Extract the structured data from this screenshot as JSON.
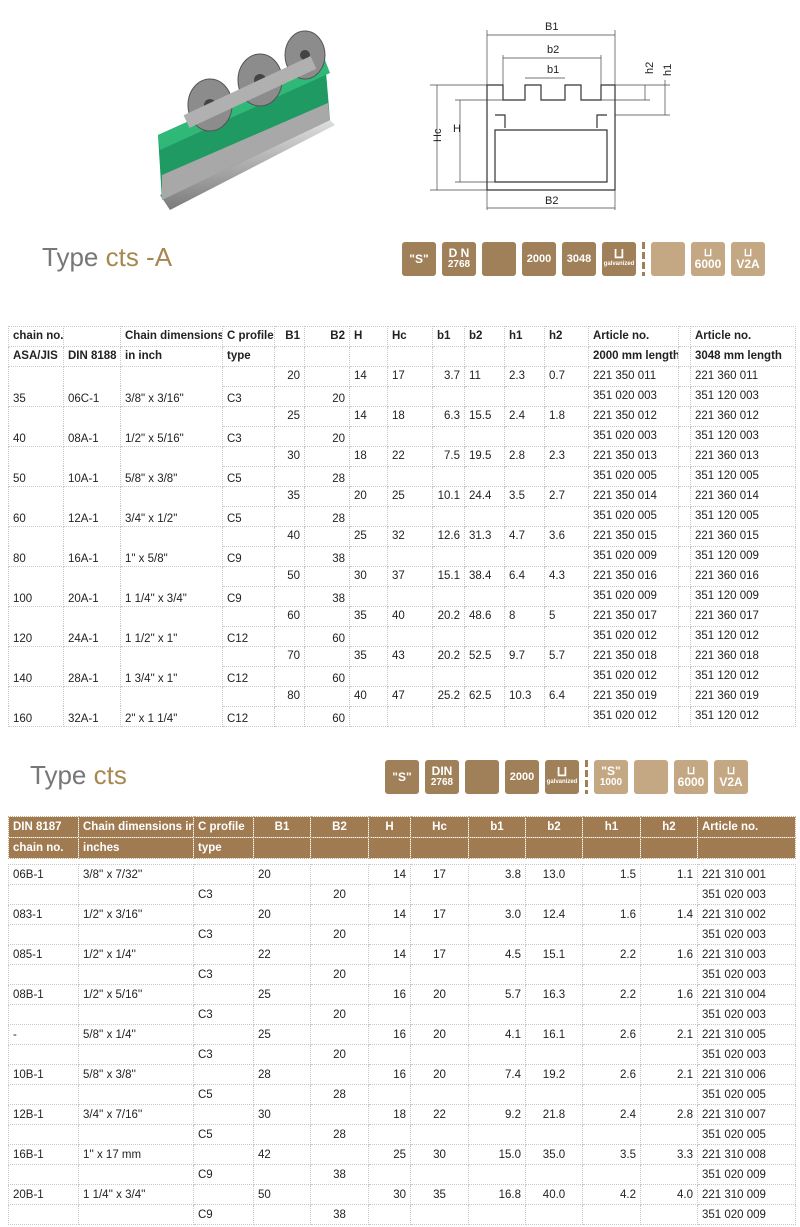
{
  "diagram": {
    "labels": [
      "B1",
      "b2",
      "b1",
      "h2",
      "h1",
      "Hc",
      "H",
      "B2"
    ]
  },
  "section_a": {
    "title_prefix": "Type",
    "title_accent": "cts -A",
    "badges": [
      {
        "icon": "s-quote-badge",
        "text": "\"S\""
      },
      {
        "icon": "din-badge",
        "text": "D N",
        "sub": "2768"
      },
      {
        "icon": "profile-drawing-badge",
        "text": ""
      },
      {
        "icon": "length-badge",
        "text": "2000"
      },
      {
        "icon": "length-badge",
        "text": "3048"
      },
      {
        "icon": "galvanized-channel-badge",
        "text": "galvanized"
      },
      {
        "icon": "blank-badge",
        "text": ""
      },
      {
        "icon": "channel-length-badge",
        "text": "6000"
      },
      {
        "icon": "stainless-channel-badge",
        "text": "V2A"
      }
    ],
    "headers": {
      "row1": [
        "chain no.",
        "",
        "Chain dimensions",
        "C profile",
        "B1",
        "B2",
        "H",
        "Hc",
        "b1",
        "b2",
        "h1",
        "h2",
        "Article no.",
        "",
        "Article no."
      ],
      "row2": [
        "ASA/JIS",
        "DIN 8188",
        "in inch",
        "type",
        "",
        "",
        "",
        "",
        "",
        "",
        "",
        "",
        "2000 mm length",
        "",
        "3048 mm length"
      ]
    },
    "rows": [
      [
        "35",
        "06C-1",
        "3/8\" x 3/16\"",
        "C3",
        "20",
        "20",
        "14",
        "17",
        "3.7",
        "11",
        "2.3",
        "0.7",
        "221 350 011",
        "351 020 003",
        "221 360 011",
        "351 120 003"
      ],
      [
        "40",
        "08A-1",
        "1/2\" x 5/16\"",
        "C3",
        "25",
        "20",
        "14",
        "18",
        "6.3",
        "15.5",
        "2.4",
        "1.8",
        "221 350 012",
        "351 020 003",
        "221 360 012",
        "351 120 003"
      ],
      [
        "50",
        "10A-1",
        "5/8\" x 3/8\"",
        "C5",
        "30",
        "28",
        "18",
        "22",
        "7.5",
        "19.5",
        "2.8",
        "2.3",
        "221 350 013",
        "351 020 005",
        "221 360 013",
        "351 120 005"
      ],
      [
        "60",
        "12A-1",
        "3/4\" x 1/2\"",
        "C5",
        "35",
        "28",
        "20",
        "25",
        "10.1",
        "24.4",
        "3.5",
        "2.7",
        "221 350 014",
        "351 020 005",
        "221 360 014",
        "351 120 005"
      ],
      [
        "80",
        "16A-1",
        "1\" x 5/8\"",
        "C9",
        "40",
        "38",
        "25",
        "32",
        "12.6",
        "31.3",
        "4.7",
        "3.6",
        "221 350 015",
        "351 020 009",
        "221 360 015",
        "351 120 009"
      ],
      [
        "100",
        "20A-1",
        "1 1/4\" x 3/4\"",
        "C9",
        "50",
        "38",
        "30",
        "37",
        "15.1",
        "38.4",
        "6.4",
        "4.3",
        "221 350 016",
        "351 020 009",
        "221 360 016",
        "351 120 009"
      ],
      [
        "120",
        "24A-1",
        "1 1/2\" x 1\"",
        "C12",
        "60",
        "60",
        "35",
        "40",
        "20.2",
        "48.6",
        "8",
        "5",
        "221 350 017",
        "351 020 012",
        "221 360 017",
        "351 120 012"
      ],
      [
        "140",
        "28A-1",
        "1 3/4\" x 1\"",
        "C12",
        "70",
        "60",
        "35",
        "43",
        "20.2",
        "52.5",
        "9.7",
        "5.7",
        "221 350 018",
        "351 020 012",
        "221 360 018",
        "351 120 012"
      ],
      [
        "160",
        "32A-1",
        "2\" x 1 1/4\"",
        "C12",
        "80",
        "60",
        "40",
        "47",
        "25.2",
        "62.5",
        "10.3",
        "6.4",
        "221 350 019",
        "351 020 012",
        "221 360 019",
        "351 120 012"
      ]
    ]
  },
  "section_b": {
    "title_prefix": "Type",
    "title_accent": "cts",
    "badges": [
      {
        "icon": "s-quote-badge",
        "text": "\"S\""
      },
      {
        "icon": "din-badge",
        "text": "DIN",
        "sub": "2768"
      },
      {
        "icon": "profile-drawing-badge",
        "text": ""
      },
      {
        "icon": "length-badge",
        "text": "2000"
      },
      {
        "icon": "galvanized-channel-badge",
        "text": "galvanized"
      },
      {
        "icon": "s1000-badge",
        "text": "\"S\"",
        "sub": "1000"
      },
      {
        "icon": "bars-badge",
        "text": ""
      },
      {
        "icon": "channel-length-badge",
        "text": "6000"
      },
      {
        "icon": "stainless-channel-badge",
        "text": "V2A"
      }
    ],
    "headers": {
      "row1": [
        "DIN 8187",
        "Chain dimensions in",
        "C profile",
        "B1",
        "B2",
        "H",
        "Hc",
        "b1",
        "b2",
        "h1",
        "h2",
        "Article no."
      ],
      "row2": [
        "chain no.",
        "inches",
        "type",
        "",
        "",
        "",
        "",
        "",
        "",
        "",
        "",
        ""
      ]
    },
    "rows": [
      [
        "06B-1",
        "3/8'' x 7/32''",
        "C3",
        "20",
        "20",
        "14",
        "17",
        "3.8",
        "13.0",
        "1.5",
        "1.1",
        "221 310 001",
        "351 020 003"
      ],
      [
        "083-1",
        "1/2'' x 3/16''",
        "C3",
        "20",
        "20",
        "14",
        "17",
        "3.0",
        "12.4",
        "1.6",
        "1.4",
        "221 310 002",
        "351 020 003"
      ],
      [
        "085-1",
        "1/2'' x 1/4''",
        "C3",
        "22",
        "20",
        "14",
        "17",
        "4.5",
        "15.1",
        "2.2",
        "1.6",
        "221 310 003",
        "351 020 003"
      ],
      [
        "08B-1",
        "1/2'' x 5/16''",
        "C3",
        "25",
        "20",
        "16",
        "20",
        "5.7",
        "16.3",
        "2.2",
        "1.6",
        "221 310 004",
        "351 020 003"
      ],
      [
        "-",
        "5/8'' x 1/4''",
        "C3",
        "25",
        "20",
        "16",
        "20",
        "4.1",
        "16.1",
        "2.6",
        "2.1",
        "221 310 005",
        "351 020 003"
      ],
      [
        "10B-1",
        "5/8'' x 3/8''",
        "C5",
        "28",
        "28",
        "16",
        "20",
        "7.4",
        "19.2",
        "2.6",
        "2.1",
        "221 310 006",
        "351 020 005"
      ],
      [
        "12B-1",
        "3/4'' x 7/16''",
        "C5",
        "30",
        "28",
        "18",
        "22",
        "9.2",
        "21.8",
        "2.4",
        "2.8",
        "221 310 007",
        "351 020 005"
      ],
      [
        "16B-1",
        "1'' x 17 mm",
        "C9",
        "42",
        "38",
        "25",
        "30",
        "15.0",
        "35.0",
        "3.5",
        "3.3",
        "221 310 008",
        "351 020 009"
      ],
      [
        "20B-1",
        "1 1/4'' x 3/4''",
        "C9",
        "50",
        "38",
        "30",
        "35",
        "16.8",
        "40.0",
        "4.2",
        "4.0",
        "221 310 009",
        "351 020 009"
      ]
    ]
  },
  "colors": {
    "accent": "#a8874f",
    "badge": "#a08058",
    "badge_light": "#c3a883",
    "header_bg": "#a07b52",
    "rail_green": "#1f9a62"
  }
}
